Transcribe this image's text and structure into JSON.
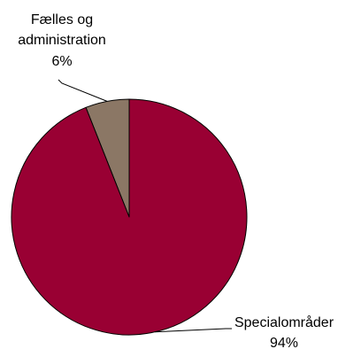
{
  "chart_data": {
    "type": "pie",
    "title": "",
    "slices": [
      {
        "label_lines": [
          "Fælles og",
          "administration"
        ],
        "value": 6,
        "value_label": "6%",
        "color": "#8B7765"
      },
      {
        "label_lines": [
          "Specialområder"
        ],
        "value": 94,
        "value_label": "94%",
        "color": "#990033"
      }
    ],
    "start": "12 o'clock",
    "direction": "counter-clockwise",
    "legend": "none",
    "labels": "outside with leader lines"
  }
}
